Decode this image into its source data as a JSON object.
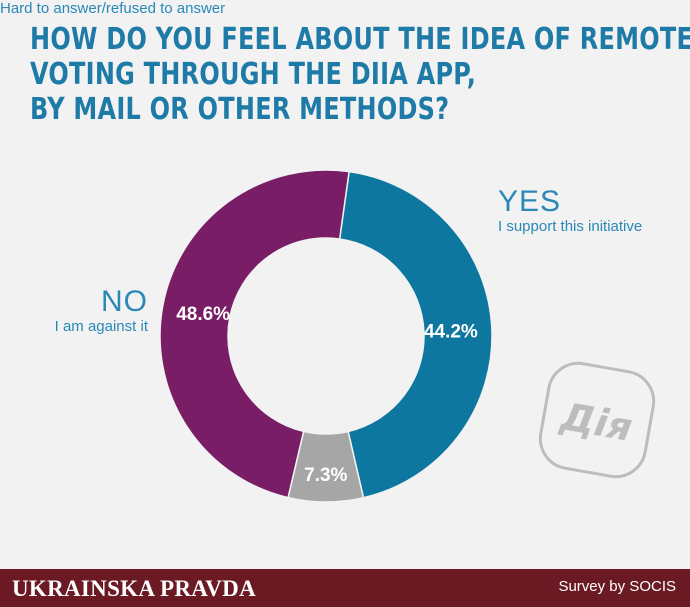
{
  "title_lines": [
    "HOW DO YOU FEEL ABOUT THE IDEA OF REMOTE",
    "VOTING THROUGH THE DIIA APP,",
    "BY MAIL OR OTHER METHODS?"
  ],
  "labels": {
    "yes_title": "YES",
    "yes_sub": "I support this initiative",
    "no_title": "NO",
    "no_sub": "I am against it",
    "hard": "Hard to answer/refused to answer"
  },
  "logo_text": "Дія",
  "footer": {
    "brand": "UKRAINSKA PRAVDA",
    "credit": "Survey by SOCIS"
  },
  "colors": {
    "yes": "#0e77a0",
    "no": "#781d66",
    "hard": "#a6a6a6",
    "title": "#1e7aa6",
    "footer": "#6b1a23"
  },
  "chart_data": {
    "type": "pie",
    "donut": true,
    "title": "HOW DO YOU FEEL ABOUT THE IDEA OF REMOTE VOTING THROUGH THE DIIA APP, BY MAIL OR OTHER METHODS?",
    "categories": [
      "YES",
      "Hard to answer/refused to answer",
      "NO"
    ],
    "values": [
      44.2,
      7.3,
      48.6
    ],
    "value_labels": [
      "44.2%",
      "7.3%",
      "48.6%"
    ],
    "colors": [
      "#0e77a0",
      "#a6a6a6",
      "#781d66"
    ]
  }
}
